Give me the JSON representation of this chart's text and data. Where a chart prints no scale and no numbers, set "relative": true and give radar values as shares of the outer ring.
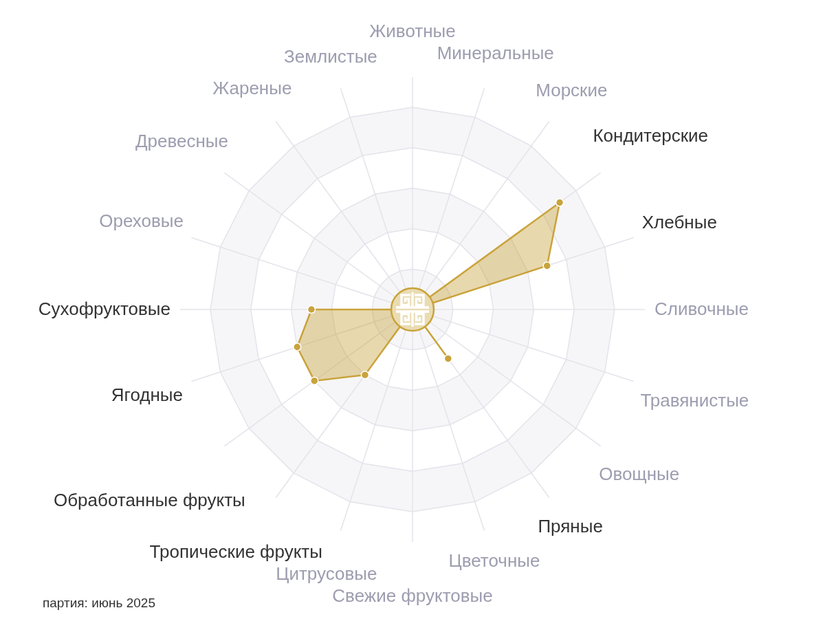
{
  "chart_data": {
    "type": "radar",
    "relative": true,
    "grid": true,
    "marker": "circle",
    "categories": [
      "Животные",
      "Минеральные",
      "Морские",
      "Кондитерские",
      "Хлебные",
      "Сливочные",
      "Травянистые",
      "Овощные",
      "Пряные",
      "Цветочные",
      "Свежие фруктовые",
      "Цитрусовые",
      "Тропические фрукты",
      "Обработанные фрукты",
      "Ягодные",
      "Сухофруктовые",
      "Ореховые",
      "Древесные",
      "Жареные",
      "Землистые"
    ],
    "series": [
      {
        "color": "#c9a33b",
        "values": [
          0,
          0,
          0,
          0.9,
          0.7,
          0,
          0,
          0,
          0.3,
          0,
          0,
          0,
          0.4,
          0.6,
          0.6,
          0.5,
          0,
          0,
          0,
          0
        ]
      }
    ],
    "annotations": [
      "партия: июнь 2025"
    ]
  }
}
